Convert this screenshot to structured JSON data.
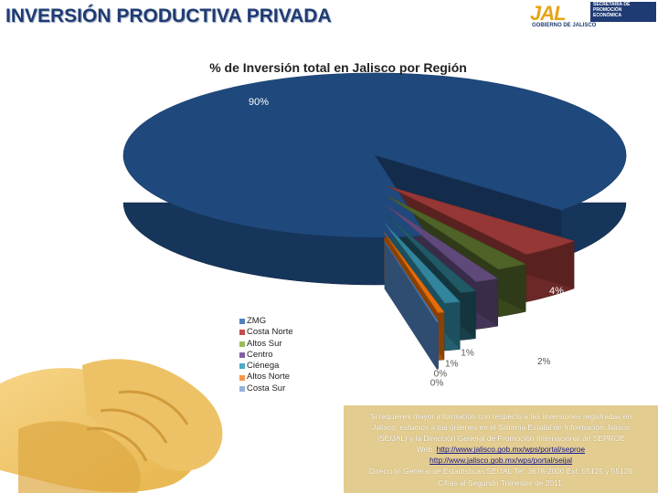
{
  "page_title": "INVERSIÓN PRODUCTIVA PRIVADA",
  "logo": {
    "mark": "JAL",
    "lines": [
      "SECRETARÍA DE",
      "PROMOCIÓN",
      "ECONÓMICA"
    ],
    "gov": "GOBIERNO DE JALISCO"
  },
  "colors": {
    "title": "#1f3b73",
    "info_bg": "#e2cc8f"
  },
  "chart_data": {
    "type": "pie",
    "style": "3d-exploded",
    "title": "% de Inversión total en Jalisco por Región",
    "legend_position": "left-bottom",
    "slices": [
      {
        "name": "ZMG",
        "value": 90,
        "label": "90%",
        "color": "#1f497d"
      },
      {
        "name": "",
        "value": 4,
        "label": "4%",
        "color": "#953735"
      },
      {
        "name": "",
        "value": 2,
        "label": "2%",
        "color": "#4f6228"
      },
      {
        "name": "",
        "value": 1.5,
        "label": "",
        "color": "#5f497a"
      },
      {
        "name": "",
        "value": 1,
        "label": "1%",
        "color": "#215967"
      },
      {
        "name": "",
        "value": 1,
        "label": "1%",
        "color": "#31859c"
      },
      {
        "name": "",
        "value": 0.4,
        "label": "0%",
        "color": "#e46c0a"
      },
      {
        "name": "",
        "value": 0.1,
        "label": "0%",
        "color": "#4f81bd"
      }
    ],
    "legend": [
      {
        "label": "ZMG",
        "color": "#4f81bd"
      },
      {
        "label": "Costa Norte",
        "color": "#c0504d"
      },
      {
        "label": "Altos Sur",
        "color": "#9bbb59"
      },
      {
        "label": "Centro",
        "color": "#8064a2"
      },
      {
        "label": "Ciénega",
        "color": "#4bacc6"
      },
      {
        "label": "Altos Norte",
        "color": "#f79646"
      },
      {
        "label": "Costa Sur",
        "color": "#95b3d7"
      }
    ]
  },
  "info": {
    "line1": "Si requieres mayor información con respecto a las inversiones registradas en",
    "line2": "Jalisco, estamos a tus órdenes en el Sistema Estatal de Información Jalisco",
    "line3": "(SEIJAL) y la Dirección General de Promoción Internacional de SEPROE",
    "web_label": "Web:",
    "link1": "http://www.jalisco.gob.mx/wps/portal/seproe",
    "link2": "http://www.jalisco.gob.mx/wps/portal/seijal",
    "line6": "Dirección General de Estadísticas SEIJAL Tel: 3678-2000 Ext. 55125 y 55128",
    "line7": "Cifras al Segundo Trimestre de 2011."
  }
}
